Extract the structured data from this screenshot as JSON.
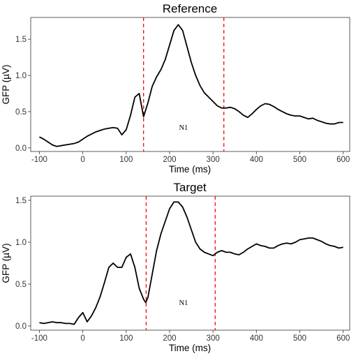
{
  "chart_data": [
    {
      "type": "line",
      "title": "Reference",
      "xlabel": "Time (ms)",
      "ylabel": "GFP (µV)",
      "xlim": [
        -120,
        615
      ],
      "ylim": [
        -0.05,
        1.8
      ],
      "xticks": [
        -100,
        0,
        100,
        200,
        300,
        400,
        500,
        600
      ],
      "yticks": [
        0.0,
        0.5,
        1.0,
        1.5
      ],
      "ytick_labels": [
        "0.0",
        "0.5",
        "1.0",
        "1.5"
      ],
      "grid": false,
      "legend": "none",
      "vlines": [
        140,
        325
      ],
      "vline_color": "#ff0000",
      "annotation": {
        "text": "N1",
        "x": 232,
        "y": 0.25
      },
      "series": [
        {
          "x": [
            -100,
            -90,
            -80,
            -70,
            -60,
            -50,
            -40,
            -30,
            -20,
            -10,
            0,
            10,
            20,
            30,
            40,
            50,
            60,
            70,
            80,
            90,
            100,
            110,
            120,
            130,
            140,
            150,
            160,
            170,
            180,
            190,
            200,
            210,
            220,
            230,
            240,
            250,
            260,
            270,
            280,
            290,
            300,
            310,
            320,
            330,
            340,
            350,
            360,
            370,
            380,
            390,
            400,
            410,
            420,
            430,
            440,
            450,
            460,
            470,
            480,
            490,
            500,
            510,
            520,
            530,
            540,
            550,
            560,
            570,
            580,
            590,
            600
          ],
          "y": [
            0.15,
            0.12,
            0.08,
            0.04,
            0.02,
            0.03,
            0.04,
            0.05,
            0.06,
            0.08,
            0.12,
            0.16,
            0.19,
            0.22,
            0.24,
            0.26,
            0.27,
            0.28,
            0.27,
            0.18,
            0.25,
            0.45,
            0.7,
            0.75,
            0.43,
            0.62,
            0.85,
            0.98,
            1.08,
            1.22,
            1.42,
            1.62,
            1.7,
            1.62,
            1.4,
            1.18,
            1.0,
            0.86,
            0.76,
            0.7,
            0.64,
            0.58,
            0.55,
            0.55,
            0.56,
            0.54,
            0.5,
            0.45,
            0.42,
            0.47,
            0.53,
            0.58,
            0.61,
            0.6,
            0.57,
            0.53,
            0.5,
            0.47,
            0.45,
            0.44,
            0.44,
            0.42,
            0.4,
            0.41,
            0.38,
            0.36,
            0.34,
            0.33,
            0.33,
            0.35,
            0.35
          ]
        }
      ]
    },
    {
      "type": "line",
      "title": "Target",
      "xlabel": "Time (ms)",
      "ylabel": "GFP (µV)",
      "xlim": [
        -120,
        615
      ],
      "ylim": [
        -0.05,
        1.55
      ],
      "xticks": [
        -100,
        0,
        100,
        200,
        300,
        400,
        500,
        600
      ],
      "yticks": [
        0.0,
        0.5,
        1.0,
        1.5
      ],
      "ytick_labels": [
        "0.0",
        "0.5",
        "1.0",
        "1.5"
      ],
      "grid": false,
      "legend": "none",
      "vlines": [
        146,
        305
      ],
      "vline_color": "#ff0000",
      "annotation": {
        "text": "N1",
        "x": 232,
        "y": 0.25
      },
      "series": [
        {
          "x": [
            -100,
            -90,
            -80,
            -70,
            -60,
            -50,
            -40,
            -30,
            -20,
            -10,
            0,
            10,
            20,
            30,
            40,
            50,
            60,
            70,
            80,
            90,
            100,
            110,
            120,
            130,
            140,
            145,
            150,
            160,
            170,
            180,
            190,
            200,
            210,
            220,
            230,
            240,
            250,
            260,
            270,
            280,
            290,
            300,
            310,
            320,
            330,
            340,
            350,
            360,
            370,
            380,
            390,
            400,
            410,
            420,
            430,
            440,
            450,
            460,
            470,
            480,
            490,
            500,
            510,
            520,
            530,
            540,
            550,
            560,
            570,
            580,
            590,
            600
          ],
          "y": [
            0.04,
            0.03,
            0.04,
            0.05,
            0.04,
            0.04,
            0.03,
            0.03,
            0.02,
            0.1,
            0.16,
            0.05,
            0.12,
            0.22,
            0.35,
            0.52,
            0.7,
            0.75,
            0.7,
            0.7,
            0.82,
            0.86,
            0.7,
            0.45,
            0.32,
            0.28,
            0.34,
            0.62,
            0.9,
            1.1,
            1.25,
            1.4,
            1.48,
            1.48,
            1.42,
            1.3,
            1.15,
            1.0,
            0.92,
            0.88,
            0.86,
            0.84,
            0.88,
            0.9,
            0.88,
            0.88,
            0.86,
            0.85,
            0.88,
            0.92,
            0.95,
            0.98,
            0.96,
            0.95,
            0.93,
            0.93,
            0.96,
            0.98,
            0.99,
            0.98,
            1.0,
            1.03,
            1.04,
            1.05,
            1.05,
            1.03,
            1.01,
            0.98,
            0.96,
            0.95,
            0.93,
            0.94
          ]
        }
      ]
    }
  ]
}
